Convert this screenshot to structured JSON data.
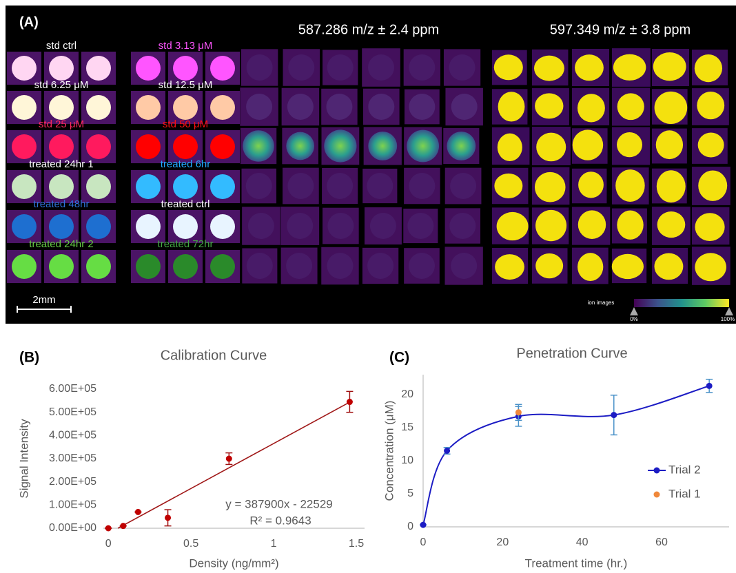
{
  "panel_a": {
    "label": "(A)",
    "header_1": "587.286 m/z ± 2.4 ppm",
    "header_2": "597.349 m/z ± 3.8 ppm",
    "wells": [
      {
        "label": "std ctrl",
        "label_color": "#ffffff",
        "color": "#ffd6f2"
      },
      {
        "label": "std 3.13 μM",
        "label_color": "#ff55ff",
        "color": "#ff55ff"
      },
      {
        "label": "std 6.25 μM",
        "label_color": "#ffffff",
        "color": "#fff6d8"
      },
      {
        "label": "std 12.5 μM",
        "label_color": "#ffffff",
        "color": "#ffcaa6"
      },
      {
        "label": "std 25 μM",
        "label_color": "#ff2a5e",
        "color": "#ff1a5e"
      },
      {
        "label": "std 50 μM",
        "label_color": "#ff1010",
        "color": "#ff0000"
      },
      {
        "label": "treated 24hr 1",
        "label_color": "#ffffff",
        "color": "#c8e6c0"
      },
      {
        "label": "treated 6hr",
        "label_color": "#22aaff",
        "color": "#33bbff"
      },
      {
        "label": "treated 48hr",
        "label_color": "#2e72d6",
        "color": "#1e6fd0"
      },
      {
        "label": "treated ctrl",
        "label_color": "#ffffff",
        "color": "#e8f4ff"
      },
      {
        "label": "treated 24hr 2",
        "label_color": "#66cc44",
        "color": "#66dd44"
      },
      {
        "label": "treated 72hr",
        "label_color": "#44aa44",
        "color": "#2a8a2a"
      }
    ],
    "scale_bar": "2mm",
    "colorbar_title": "ion images",
    "colorbar_min": "0%",
    "colorbar_max": "100%"
  },
  "chart_data": [
    {
      "type": "scatter",
      "panel_label": "(B)",
      "title": "Calibration Curve",
      "x_label": "Density (ng/mm²)",
      "y_label": "Signal Intensity",
      "xlim": [
        -0.03,
        1.55
      ],
      "ylim": [
        0,
        600000
      ],
      "xticks": [
        0,
        0.5,
        1,
        1.5
      ],
      "yticks": [
        {
          "value": 0,
          "label": "0.00E+00"
        },
        {
          "value": 100000,
          "label": "1.00E+05"
        },
        {
          "value": 200000,
          "label": "2.00E+05"
        },
        {
          "value": 300000,
          "label": "3.00E+05"
        },
        {
          "value": 400000,
          "label": "4.00E+05"
        },
        {
          "value": 500000,
          "label": "5.00E+05"
        },
        {
          "value": 600000,
          "label": "6.00E+05"
        }
      ],
      "y_axis_line": false,
      "series": [
        {
          "color": "#c00000",
          "error_color": "#a01010",
          "line": false,
          "x": [
            0,
            0.09,
            0.18,
            0.36,
            0.73,
            1.46
          ],
          "values": [
            0,
            10000,
            70000,
            45000,
            300000,
            545000
          ],
          "errors": [
            0,
            0,
            0,
            35000,
            25000,
            45000
          ]
        }
      ],
      "trendline": {
        "color": "#a01818",
        "slope": 387900,
        "intercept": -22529,
        "equation": "y = 387900x - 22529",
        "r2_label": "R² = 0.9643"
      }
    },
    {
      "type": "line",
      "panel_label": "(C)",
      "title": "Penetration Curve",
      "x_label": "Treatment time (hr.)",
      "y_label": "Concentration (μM)",
      "xlim": [
        0,
        77
      ],
      "ylim": [
        0,
        23
      ],
      "xticks": [
        0,
        20,
        40,
        60
      ],
      "yticks": [
        0,
        5,
        10,
        15,
        20
      ],
      "y_axis_line": true,
      "series": [
        {
          "name": "Trial 2",
          "color": "#1c1cc4",
          "error_color": "#4a92c8",
          "line": true,
          "x": [
            0,
            6,
            24,
            48,
            72
          ],
          "values": [
            0.3,
            11.5,
            16.7,
            16.9,
            21.3
          ],
          "errors": [
            0,
            0.5,
            1.5,
            3,
            1
          ]
        },
        {
          "name": "Trial 1",
          "color": "#f0883a",
          "error_color": "#4a92c8",
          "line": false,
          "x": [
            24
          ],
          "values": [
            17.3
          ],
          "errors": [
            1.2
          ]
        }
      ]
    }
  ]
}
